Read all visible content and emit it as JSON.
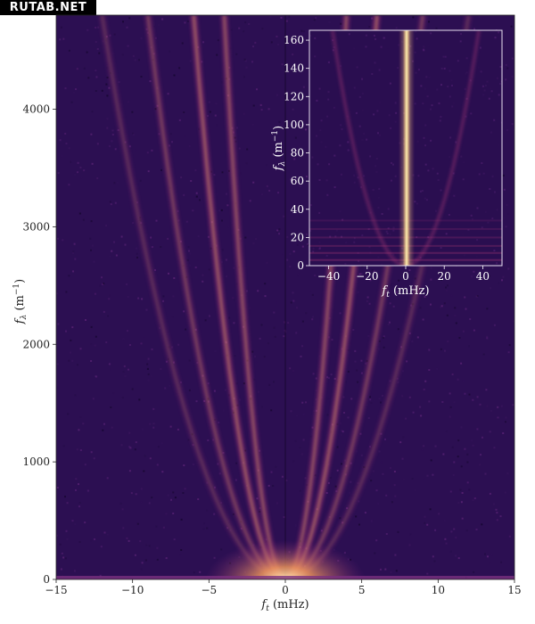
{
  "watermark": "RUTAB.NET",
  "colors": {
    "background_low": "#2c0f52",
    "ridge_mid": "#b23a78",
    "ridge_high": "#f5b16a",
    "peak": "#fdf0b0",
    "axis_main": "#222222",
    "axis_inset": "#ffffff"
  },
  "chart_data": [
    {
      "type": "heatmap",
      "panel": "main",
      "colormap": "magma",
      "xlabel": "f_t (mHz)",
      "ylabel": "f_λ (m⁻¹)",
      "xlim": [
        -15,
        15
      ],
      "ylim": [
        0,
        4800
      ],
      "xticks": [
        -15,
        -10,
        -5,
        0,
        5,
        10,
        15
      ],
      "xtick_labels": [
        "−15",
        "−10",
        "−5",
        "0",
        "5",
        "10",
        "15"
      ],
      "yticks": [
        0,
        1000,
        2000,
        3000,
        4000
      ],
      "ytick_labels": [
        "0",
        "1000",
        "2000",
        "3000",
        "4000"
      ],
      "dispersion_branches": [
        {
          "order": 1,
          "f_t_at_fmax": 4.0,
          "intensity": 0.75
        },
        {
          "order": 2,
          "f_t_at_fmax": 6.0,
          "intensity": 0.85
        },
        {
          "order": 3,
          "f_t_at_fmax": 9.0,
          "intensity": 0.55
        },
        {
          "order": 4,
          "f_t_at_fmax": 12.0,
          "intensity": 0.35
        }
      ],
      "central_line_f_t": 0
    },
    {
      "type": "heatmap",
      "panel": "inset",
      "colormap": "magma",
      "xlabel": "f_t (mHz)",
      "ylabel": "f_λ (m⁻¹)",
      "xlim": [
        -50,
        50
      ],
      "ylim": [
        0,
        167
      ],
      "xticks": [
        -40,
        -20,
        0,
        20,
        40
      ],
      "xtick_labels": [
        "−40",
        "−20",
        "0",
        "20",
        "40"
      ],
      "yticks": [
        0,
        20,
        40,
        60,
        80,
        100,
        120,
        140,
        160
      ],
      "ytick_labels": [
        "0",
        "20",
        "40",
        "60",
        "80",
        "100",
        "120",
        "140",
        "160"
      ],
      "central_line_f_t": 0,
      "dispersion_branches": [
        {
          "order": 1,
          "f_t_at_fmax": 38,
          "intensity": 0.35
        }
      ]
    }
  ]
}
